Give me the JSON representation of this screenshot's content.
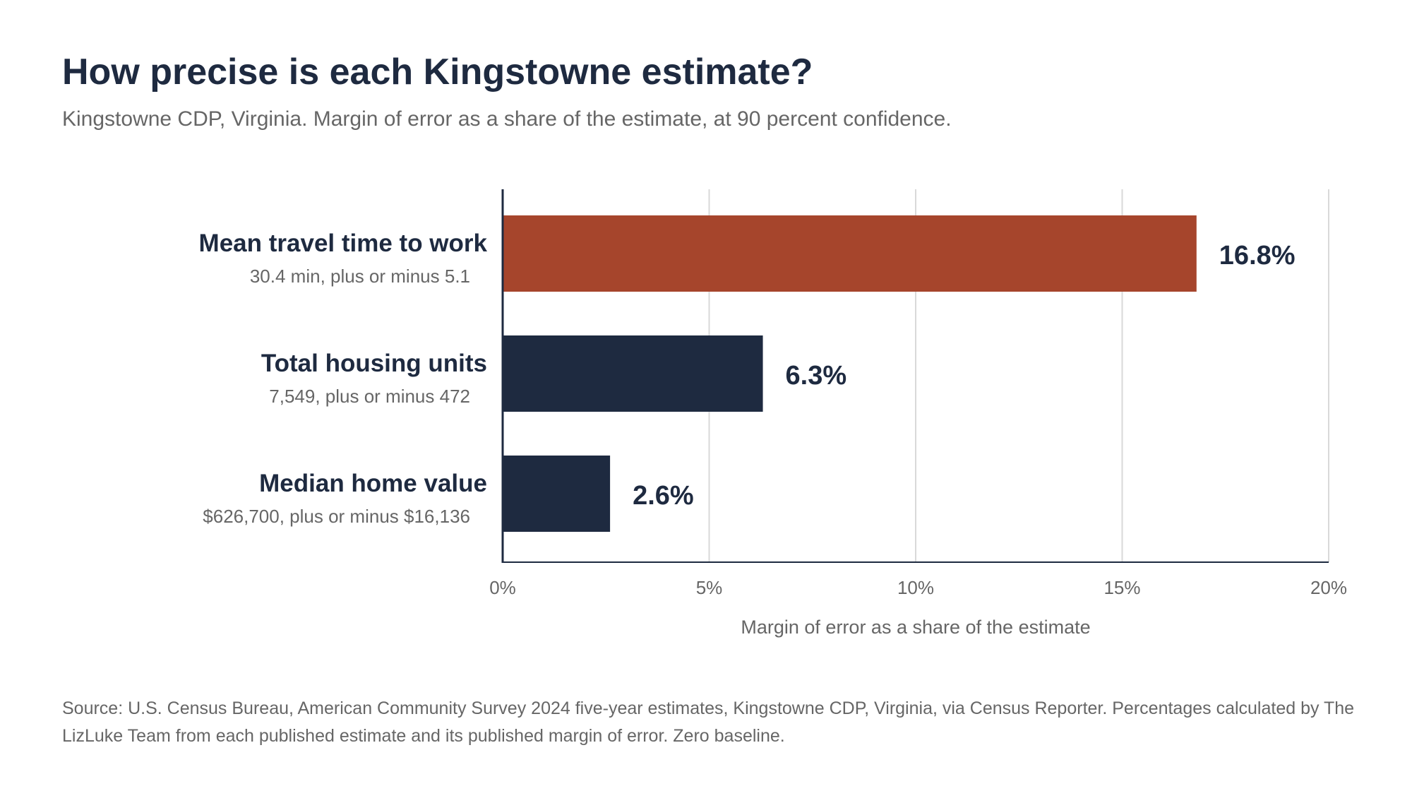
{
  "title": "How precise is each Kingstowne estimate?",
  "subtitle": "Kingstowne CDP, Virginia. Margin of error as a share of the estimate, at 90 percent confidence.",
  "source": "Source: U.S. Census Bureau, American Community Survey 2024 five-year estimates, Kingstowne CDP, Virginia, via Census Reporter. Percentages calculated by The LizLuke Team from each published estimate and its published margin of error. Zero baseline.",
  "colors": {
    "highlight": "#a6452c",
    "bar": "#1e2a40",
    "grid": "#d9d9d9",
    "axis": "#1e2a40",
    "muted": "#666666"
  },
  "chart_data": {
    "type": "bar",
    "orientation": "horizontal",
    "title": "How precise is each Kingstowne estimate?",
    "subtitle": "Kingstowne CDP, Virginia. Margin of error as a share of the estimate, at 90 percent confidence.",
    "categories": [
      "Mean travel time to work",
      "Total housing units",
      "Median home value"
    ],
    "sublabels": [
      "30.4 min, plus or minus 5.1",
      "7,549, plus or minus 472",
      "$626,700, plus or minus $16,136"
    ],
    "values": [
      16.8,
      6.3,
      2.6
    ],
    "value_labels": [
      "16.8%",
      "6.3%",
      "2.6%"
    ],
    "highlight_index": 0,
    "xlabel": "Margin of error as a share of the estimate",
    "ylabel": "",
    "xlim": [
      0,
      20
    ],
    "xticks": [
      0,
      5,
      10,
      15,
      20
    ],
    "xtick_labels": [
      "0%",
      "5%",
      "10%",
      "15%",
      "20%"
    ],
    "grid": "vertical"
  }
}
